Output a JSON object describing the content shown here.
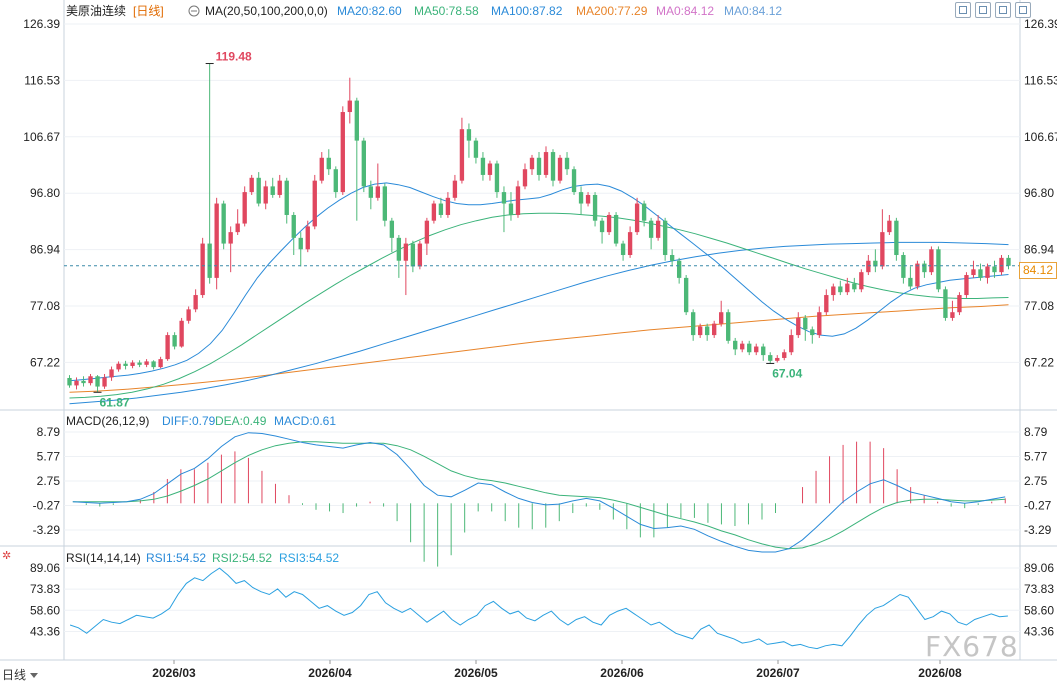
{
  "header": {
    "symbol": "美原油连续",
    "period": "[日线]",
    "ma_label": "MA(20,50,100,200,0,0)",
    "ma20": "MA20:82.60",
    "ma50": "MA50:78.58",
    "ma100": "MA100:87.82",
    "ma200": "MA200:77.29",
    "ma0a": "MA0:84.12",
    "ma0b": "MA0:84.12"
  },
  "macd_header": {
    "label": "MACD(26,12,9)",
    "diff": "DIFF:0.79",
    "dea": "DEA:0.49",
    "macd": "MACD:0.61"
  },
  "rsi_header": {
    "label": "RSI(14,14,14)",
    "rsi1": "RSI1:54.52",
    "rsi2": "RSI2:54.52",
    "rsi3": "RSI3:54.52"
  },
  "price_axis": [
    "126.39",
    "116.53",
    "106.67",
    "96.80",
    "86.94",
    "77.08",
    "67.22"
  ],
  "macd_axis": [
    "8.79",
    "5.77",
    "2.75",
    "-0.27",
    "-3.29"
  ],
  "rsi_axis": [
    "89.06",
    "73.83",
    "58.60",
    "43.36"
  ],
  "date_axis": [
    "2026/03",
    "2026/04",
    "2026/05",
    "2026/06",
    "2026/07",
    "2026/08"
  ],
  "current_price": "84.12",
  "annotations": {
    "high": "119.48",
    "low1": "61.87",
    "low2": "67.04"
  },
  "period_button": "日线",
  "watermark": "FX678",
  "colors": {
    "up": "#e0475f",
    "down": "#4cb877",
    "ma20": "#2a8ad8",
    "ma50": "#3bb37a",
    "ma100": "#2a8ad8",
    "ma200": "#e8842a",
    "rsi": "#2aa0e0"
  },
  "chart_data": {
    "type": "candlestick",
    "ylim": [
      60,
      128
    ],
    "candles": [
      [
        64.5,
        63.2,
        65.0,
        62.8
      ],
      [
        63.2,
        64.0,
        64.6,
        62.5
      ],
      [
        64.0,
        63.6,
        64.8,
        63.0
      ],
      [
        63.6,
        64.8,
        65.2,
        63.2
      ],
      [
        64.8,
        63.0,
        65.0,
        62.0
      ],
      [
        63.0,
        64.6,
        65.2,
        62.6
      ],
      [
        64.6,
        66.0,
        66.5,
        64.0
      ],
      [
        66.0,
        67.0,
        67.4,
        65.6
      ],
      [
        67.0,
        66.6,
        67.5,
        66.0
      ],
      [
        66.6,
        67.2,
        67.6,
        66.2
      ],
      [
        67.2,
        66.8,
        67.6,
        66.4
      ],
      [
        66.8,
        67.4,
        67.8,
        66.4
      ],
      [
        67.4,
        66.4,
        67.6,
        66.0
      ],
      [
        66.4,
        67.8,
        68.2,
        66.2
      ],
      [
        67.8,
        72.0,
        72.5,
        67.5
      ],
      [
        72.0,
        70.0,
        72.5,
        69.5
      ],
      [
        70.0,
        74.5,
        75.0,
        69.8
      ],
      [
        74.5,
        76.5,
        77.0,
        74.0
      ],
      [
        76.5,
        79.0,
        80.0,
        76.0
      ],
      [
        79.0,
        88.0,
        89.0,
        78.5
      ],
      [
        88.0,
        82.0,
        119.48,
        81.0
      ],
      [
        82.0,
        95.0,
        96.0,
        80.0
      ],
      [
        95.0,
        88.0,
        95.5,
        87.0
      ],
      [
        88.0,
        90.0,
        91.0,
        83.0
      ],
      [
        90.0,
        91.5,
        94.0,
        89.5
      ],
      [
        91.5,
        97.0,
        98.0,
        91.0
      ],
      [
        97.0,
        99.5,
        100.0,
        96.5
      ],
      [
        99.5,
        95.0,
        100.5,
        94.5
      ],
      [
        95.0,
        98.0,
        99.0,
        94.0
      ],
      [
        98.0,
        96.5,
        99.5,
        96.0
      ],
      [
        96.5,
        99.0,
        100.0,
        96.0
      ],
      [
        99.0,
        93.0,
        99.5,
        91.5
      ],
      [
        93.0,
        89.0,
        93.5,
        86.0
      ],
      [
        89.0,
        87.0,
        90.0,
        84.0
      ],
      [
        87.0,
        91.0,
        92.0,
        86.5
      ],
      [
        91.0,
        99.0,
        100.0,
        90.5
      ],
      [
        99.0,
        103.0,
        104.0,
        98.5
      ],
      [
        103.0,
        101.0,
        104.5,
        100.0
      ],
      [
        101.0,
        97.0,
        101.5,
        96.0
      ],
      [
        97.0,
        111.0,
        112.0,
        96.5
      ],
      [
        111.0,
        113.0,
        117.0,
        109.0
      ],
      [
        113.0,
        106.0,
        113.5,
        92.0
      ],
      [
        106.0,
        98.0,
        106.5,
        97.0
      ],
      [
        98.0,
        96.0,
        99.0,
        94.0
      ],
      [
        96.0,
        98.0,
        102.0,
        95.5
      ],
      [
        98.0,
        92.0,
        98.5,
        91.0
      ],
      [
        92.0,
        89.0,
        92.5,
        86.5
      ],
      [
        89.0,
        85.0,
        89.5,
        82.0
      ],
      [
        85.0,
        88.0,
        89.0,
        79.0
      ],
      [
        88.0,
        84.0,
        88.5,
        83.0
      ],
      [
        84.0,
        88.0,
        88.5,
        83.5
      ],
      [
        88.0,
        92.0,
        92.5,
        86.0
      ],
      [
        92.0,
        95.0,
        95.5,
        91.5
      ],
      [
        95.0,
        93.0,
        96.0,
        92.5
      ],
      [
        93.0,
        96.0,
        97.0,
        92.5
      ],
      [
        96.0,
        99.0,
        100.0,
        95.5
      ],
      [
        99.0,
        108.0,
        110.0,
        98.5
      ],
      [
        108.0,
        106.0,
        109.0,
        103.0
      ],
      [
        106.0,
        103.0,
        106.5,
        102.0
      ],
      [
        103.0,
        100.0,
        104.0,
        99.0
      ],
      [
        100.0,
        102.0,
        102.5,
        99.0
      ],
      [
        102.0,
        97.0,
        102.5,
        96.0
      ],
      [
        97.0,
        95.0,
        98.0,
        90.0
      ],
      [
        95.0,
        93.0,
        97.0,
        92.0
      ],
      [
        93.0,
        98.0,
        99.0,
        92.5
      ],
      [
        98.0,
        101.0,
        102.0,
        97.5
      ],
      [
        101.0,
        103.0,
        103.5,
        100.0
      ],
      [
        103.0,
        100.0,
        104.0,
        99.0
      ],
      [
        100.0,
        104.0,
        105.0,
        99.5
      ],
      [
        104.0,
        99.0,
        104.5,
        98.0
      ],
      [
        99.0,
        103.0,
        103.5,
        98.5
      ],
      [
        103.0,
        101.0,
        104.0,
        100.0
      ],
      [
        101.0,
        97.0,
        101.5,
        96.5
      ],
      [
        97.0,
        95.0,
        98.0,
        93.0
      ],
      [
        95.0,
        96.5,
        97.0,
        94.5
      ],
      [
        96.5,
        92.0,
        97.0,
        91.0
      ],
      [
        92.0,
        90.0,
        92.5,
        88.0
      ],
      [
        90.0,
        93.0,
        93.5,
        89.5
      ],
      [
        93.0,
        88.0,
        93.5,
        87.5
      ],
      [
        88.0,
        86.0,
        88.5,
        85.0
      ],
      [
        86.0,
        90.0,
        91.0,
        85.5
      ],
      [
        90.0,
        95.0,
        96.0,
        89.5
      ],
      [
        95.0,
        92.0,
        95.5,
        91.0
      ],
      [
        92.0,
        89.0,
        92.5,
        87.0
      ],
      [
        89.0,
        92.0,
        93.0,
        88.5
      ],
      [
        92.0,
        86.0,
        92.5,
        85.0
      ],
      [
        86.0,
        85.0,
        87.0,
        84.0
      ],
      [
        85.0,
        82.0,
        85.5,
        81.0
      ],
      [
        82.0,
        76.0,
        82.5,
        75.5
      ],
      [
        76.0,
        72.0,
        76.5,
        71.0
      ],
      [
        72.0,
        73.5,
        74.0,
        71.5
      ],
      [
        73.5,
        72.0,
        74.0,
        71.0
      ],
      [
        72.0,
        74.0,
        74.5,
        71.5
      ],
      [
        74.0,
        76.0,
        78.0,
        73.5
      ],
      [
        76.0,
        71.0,
        76.5,
        70.5
      ],
      [
        71.0,
        69.5,
        71.5,
        68.5
      ],
      [
        69.5,
        70.5,
        71.0,
        69.0
      ],
      [
        70.5,
        69.0,
        71.0,
        68.5
      ],
      [
        69.0,
        70.0,
        70.5,
        68.5
      ],
      [
        70.0,
        68.5,
        70.5,
        67.5
      ],
      [
        68.5,
        67.5,
        69.0,
        67.04
      ],
      [
        67.5,
        68.0,
        68.5,
        67.2
      ],
      [
        68.0,
        69.0,
        69.5,
        67.6
      ],
      [
        69.0,
        72.0,
        73.0,
        68.5
      ],
      [
        72.0,
        75.0,
        76.0,
        71.5
      ],
      [
        75.0,
        73.0,
        75.5,
        71.0
      ],
      [
        73.0,
        72.0,
        73.5,
        70.5
      ],
      [
        72.0,
        76.0,
        77.0,
        71.5
      ],
      [
        76.0,
        79.0,
        80.0,
        75.5
      ],
      [
        79.0,
        80.5,
        81.0,
        78.0
      ],
      [
        80.5,
        79.5,
        81.5,
        79.0
      ],
      [
        79.5,
        81.0,
        82.0,
        79.0
      ],
      [
        81.0,
        80.0,
        82.0,
        79.5
      ],
      [
        80.0,
        83.0,
        83.5,
        79.5
      ],
      [
        83.0,
        85.0,
        86.0,
        82.5
      ],
      [
        85.0,
        84.0,
        87.0,
        83.0
      ],
      [
        84.0,
        90.0,
        94.0,
        83.5
      ],
      [
        90.0,
        92.0,
        93.0,
        89.5
      ],
      [
        92.0,
        86.0,
        92.5,
        85.0
      ],
      [
        86.0,
        82.0,
        86.5,
        81.0
      ],
      [
        82.0,
        80.5,
        84.0,
        80.0
      ],
      [
        80.5,
        84.5,
        85.0,
        80.0
      ],
      [
        84.5,
        83.0,
        85.0,
        82.0
      ],
      [
        83.0,
        87.0,
        87.5,
        82.5
      ],
      [
        87.0,
        80.0,
        87.5,
        79.5
      ],
      [
        80.0,
        75.0,
        80.5,
        74.5
      ],
      [
        75.0,
        76.0,
        78.0,
        74.5
      ],
      [
        76.0,
        79.0,
        79.5,
        75.5
      ],
      [
        79.0,
        82.5,
        83.0,
        78.5
      ],
      [
        82.5,
        83.5,
        85.0,
        82.0
      ],
      [
        83.5,
        82.0,
        84.5,
        81.5
      ],
      [
        82.0,
        84.0,
        84.5,
        81.0
      ],
      [
        84.0,
        83.0,
        85.0,
        82.0
      ],
      [
        83.0,
        85.5,
        86.0,
        82.5
      ],
      [
        85.5,
        84.12,
        86.0,
        83.5
      ]
    ],
    "ma20": [
      64,
      64.2,
      64.4,
      64.6,
      64.8,
      65.0,
      65.3,
      65.7,
      66.2,
      66.8,
      67.6,
      68.8,
      70.5,
      72.8,
      75.8,
      79.0,
      82.0,
      84.5,
      86.7,
      88.8,
      90.8,
      92.6,
      94.2,
      95.6,
      96.8,
      97.8,
      98.4,
      98.6,
      98.3,
      97.8,
      97.0,
      96.2,
      95.5,
      95.0,
      94.8,
      94.8,
      95.0,
      95.3,
      95.6,
      95.8,
      96.0,
      96.6,
      97.4,
      98.0,
      98.3,
      98.4,
      98.0,
      97.2,
      96.0,
      94.6,
      93.0,
      91.4,
      89.8,
      88.2,
      86.6,
      85.0,
      83.2,
      81.4,
      79.6,
      77.8,
      76.2,
      74.8,
      73.6,
      72.6,
      72.0,
      71.8,
      72.2,
      73.2,
      74.6,
      76.2,
      77.8,
      79.2,
      80.2,
      80.8,
      81.2,
      81.6,
      81.8,
      82.0,
      82.2,
      82.4,
      82.6
    ],
    "ma50": [
      61,
      61.1,
      61.3,
      61.6,
      62.0,
      62.6,
      63.4,
      64.4,
      65.6,
      67.0,
      68.6,
      70.3,
      72.1,
      73.9,
      75.7,
      77.5,
      79.2,
      80.9,
      82.5,
      84.0,
      85.5,
      86.9,
      88.2,
      89.4,
      90.4,
      91.3,
      92.0,
      92.6,
      93.0,
      93.2,
      93.3,
      93.3,
      93.2,
      93.0,
      92.8,
      92.5,
      92.1,
      91.6,
      91.0,
      90.4,
      89.7,
      88.9,
      88.1,
      87.2,
      86.3,
      85.4,
      84.5,
      83.6,
      82.8,
      82.0,
      81.2,
      80.5,
      79.9,
      79.4,
      79.0,
      78.7,
      78.5,
      78.4,
      78.4,
      78.5,
      78.58
    ],
    "ma100": [
      60,
      60.3,
      60.6,
      61,
      61.5,
      62,
      62.6,
      63.3,
      64.1,
      65,
      66,
      67,
      68.1,
      69.2,
      70.4,
      71.6,
      72.8,
      74,
      75.2,
      76.4,
      77.6,
      78.8,
      80,
      81.2,
      82.3,
      83.3,
      84.2,
      85,
      85.7,
      86.3,
      86.8,
      87.2,
      87.5,
      87.7,
      87.9,
      88,
      88.1,
      88.2,
      88.2,
      88.2,
      88.1,
      88.0,
      87.82
    ],
    "ma200": [
      62,
      62.2,
      62.5,
      62.9,
      63.3,
      63.8,
      64.3,
      64.9,
      65.5,
      66.1,
      66.7,
      67.3,
      67.9,
      68.5,
      69.1,
      69.7,
      70.3,
      70.9,
      71.4,
      71.9,
      72.4,
      72.9,
      73.3,
      73.7,
      74.1,
      74.5,
      74.9,
      75.3,
      75.6,
      75.9,
      76.2,
      76.5,
      76.8,
      77.0,
      77.29
    ],
    "macd": {
      "diff": [
        0.2,
        0.1,
        0.0,
        0.1,
        0.2,
        0.5,
        1.2,
        2.4,
        3.6,
        4.3,
        5.5,
        7.0,
        8.2,
        8.7,
        8.6,
        8.3,
        7.9,
        7.5,
        7.2,
        7.0,
        6.8,
        7.2,
        7.5,
        7.2,
        6.0,
        4.2,
        2.2,
        1.0,
        0.8,
        1.6,
        2.5,
        2.3,
        1.4,
        0.6,
        0.1,
        -0.2,
        -0.1,
        0.3,
        0.6,
        0.3,
        -0.6,
        -1.6,
        -2.6,
        -3.1,
        -3.0,
        -2.8,
        -3.2,
        -4.0,
        -4.7,
        -5.3,
        -5.8,
        -6.0,
        -6.0,
        -5.6,
        -4.5,
        -3.0,
        -1.4,
        0.2,
        1.4,
        2.4,
        2.9,
        2.2,
        1.4,
        1.0,
        0.6,
        0.2,
        0.0,
        0.2,
        0.5,
        0.79
      ],
      "dea": [
        0.2,
        0.2,
        0.2,
        0.2,
        0.2,
        0.3,
        0.5,
        0.9,
        1.5,
        2.2,
        3.0,
        4.0,
        5.0,
        5.9,
        6.6,
        7.1,
        7.4,
        7.6,
        7.6,
        7.5,
        7.4,
        7.4,
        7.4,
        7.4,
        7.1,
        6.6,
        5.8,
        4.9,
        4.0,
        3.4,
        3.0,
        2.8,
        2.5,
        2.1,
        1.7,
        1.3,
        1.0,
        0.9,
        0.8,
        0.7,
        0.4,
        0.0,
        -0.5,
        -1.0,
        -1.5,
        -1.9,
        -2.3,
        -2.8,
        -3.4,
        -3.9,
        -4.5,
        -5.0,
        -5.4,
        -5.6,
        -5.5,
        -5.0,
        -4.3,
        -3.4,
        -2.4,
        -1.4,
        -0.5,
        0.1,
        0.4,
        0.5,
        0.5,
        0.4,
        0.3,
        0.3,
        0.4,
        0.49
      ],
      "hist": [
        0.0,
        -0.2,
        -0.4,
        -0.2,
        0.0,
        0.4,
        1.4,
        3.0,
        4.2,
        4.2,
        5.0,
        6.0,
        6.4,
        5.6,
        4.0,
        2.4,
        1.0,
        -0.2,
        -0.8,
        -1.0,
        -1.2,
        -0.4,
        0.2,
        -0.4,
        -2.2,
        -4.8,
        -7.2,
        -7.8,
        -6.4,
        -3.6,
        -1.0,
        -1.0,
        -2.2,
        -3.0,
        -3.2,
        -3.0,
        -2.2,
        -1.2,
        -0.4,
        -0.8,
        -2.0,
        -3.2,
        -4.2,
        -4.2,
        -3.0,
        -1.8,
        -1.8,
        -2.4,
        -2.6,
        -2.8,
        -2.6,
        -2.0,
        -1.2,
        0.0,
        2.0,
        4.0,
        5.8,
        7.2,
        7.6,
        7.6,
        6.8,
        4.2,
        2.0,
        1.0,
        0.2,
        -0.4,
        -0.6,
        -0.2,
        0.2,
        0.61
      ]
    },
    "rsi": [
      48,
      46,
      42,
      47,
      52,
      50,
      49,
      52,
      55,
      54,
      53,
      56,
      60,
      70,
      78,
      82,
      80,
      85,
      89,
      84,
      78,
      80,
      75,
      72,
      70,
      74,
      68,
      72,
      70,
      65,
      60,
      62,
      58,
      55,
      57,
      62,
      70,
      72,
      64,
      60,
      57,
      60,
      55,
      50,
      54,
      58,
      52,
      48,
      52,
      55,
      62,
      65,
      60,
      56,
      58,
      53,
      51,
      55,
      58,
      52,
      48,
      52,
      54,
      50,
      48,
      55,
      58,
      60,
      56,
      52,
      48,
      50,
      46,
      42,
      40,
      38,
      45,
      48,
      42,
      40,
      38,
      35,
      36,
      38,
      34,
      35,
      36,
      33,
      34,
      32,
      31,
      33,
      34,
      33,
      40,
      48,
      55,
      60,
      62,
      66,
      70,
      68,
      60,
      52,
      54,
      58,
      56,
      50,
      48,
      52,
      54,
      56,
      54,
      54.52
    ]
  }
}
